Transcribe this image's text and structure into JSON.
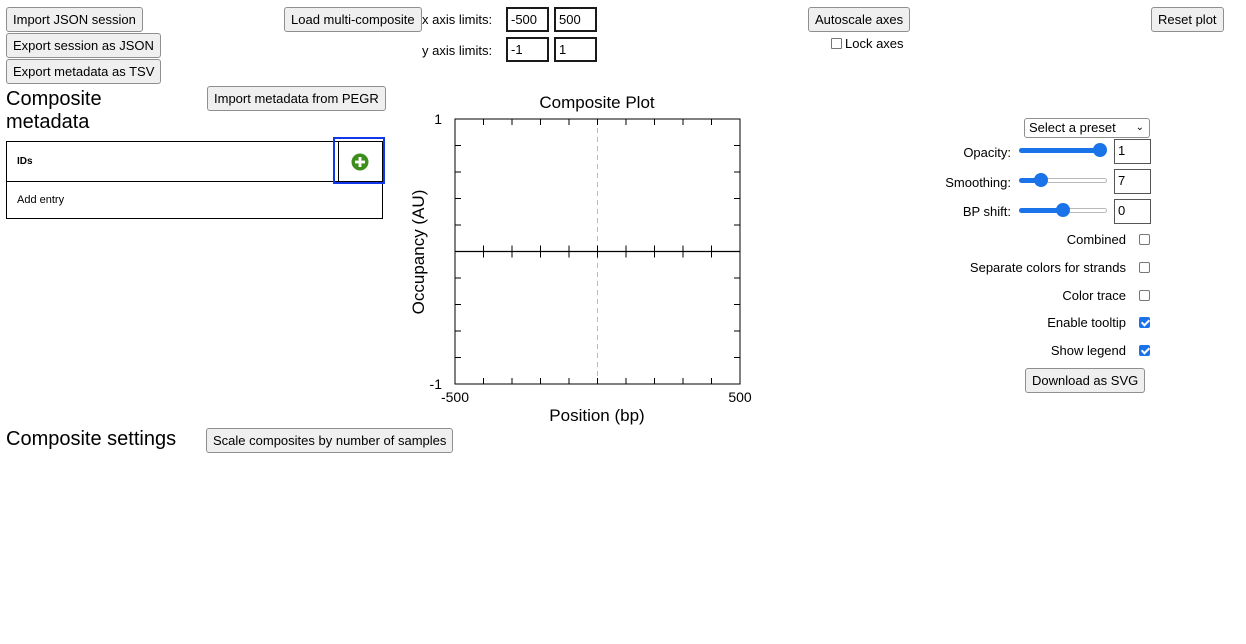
{
  "toolbar": {
    "import_json": "Import JSON session",
    "export_json": "Export session as JSON",
    "export_tsv": "Export metadata as TSV",
    "load_multi": "Load multi-composite",
    "autoscale": "Autoscale axes",
    "lock_axes": "Lock axes",
    "reset_plot": "Reset plot"
  },
  "axis_limits": {
    "x_label": "x axis limits:",
    "x_min": "-500",
    "x_max": "500",
    "y_label": "y axis limits:",
    "y_min": "-1",
    "y_max": "1"
  },
  "metadata": {
    "title": "Composite metadata",
    "import_pegr": "Import metadata from PEGR",
    "column_ids": "IDs",
    "add_entry": "Add entry",
    "add_icon": "plus-circle-icon"
  },
  "settings": {
    "title": "Composite settings",
    "scale_button": "Scale composites by number of samples"
  },
  "plot_controls": {
    "preset_select": "Select a preset",
    "opacity_label": "Opacity:",
    "opacity_value": "1",
    "smoothing_label": "Smoothing:",
    "smoothing_value": "7",
    "bp_shift_label": "BP shift:",
    "bp_shift_value": "0",
    "combined_label": "Combined",
    "separate_colors_label": "Separate colors for strands",
    "color_trace_label": "Color trace",
    "enable_tooltip_label": "Enable tooltip",
    "show_legend_label": "Show legend",
    "download_svg": "Download as SVG",
    "combined": false,
    "separate_colors": false,
    "color_trace": false,
    "enable_tooltip": true,
    "show_legend": true,
    "opacity_slider_fraction": 1.0,
    "smoothing_slider_fraction": 0.2,
    "bp_shift_slider_fraction": 0.5,
    "accent_color": "#1a73e8"
  },
  "chart_data": {
    "type": "line",
    "title": "Composite Plot",
    "xlabel": "Position (bp)",
    "ylabel": "Occupancy (AU)",
    "xlim": [
      -500,
      500
    ],
    "ylim": [
      -1,
      1
    ],
    "x_tick_labels": [
      "-500",
      "500"
    ],
    "y_tick_labels": [
      "1",
      "-1"
    ],
    "series": []
  }
}
